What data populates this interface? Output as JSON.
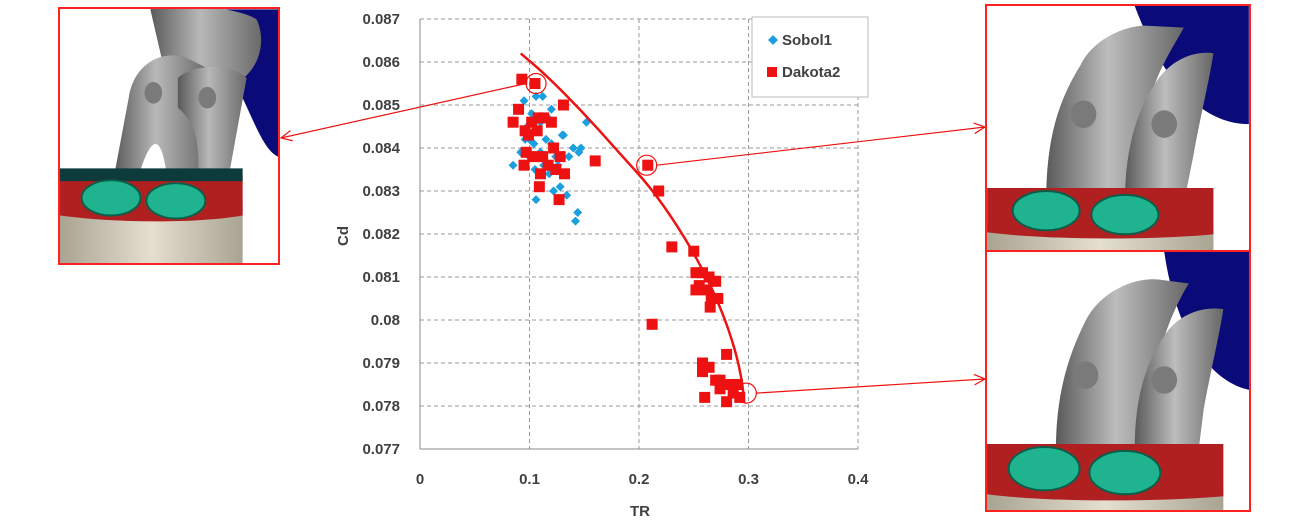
{
  "chart_data": {
    "type": "scatter",
    "xlabel": "TR",
    "ylabel": "Cd",
    "xlim": [
      0,
      0.4
    ],
    "ylim": [
      0.077,
      0.087
    ],
    "x_ticks": [
      "0",
      "0.1",
      "0.2",
      "0.3",
      "0.4"
    ],
    "y_ticks": [
      "0.077",
      "0.078",
      "0.079",
      "0.08",
      "0.081",
      "0.082",
      "0.083",
      "0.084",
      "0.085",
      "0.086",
      "0.087"
    ],
    "grid": "dashed",
    "legend_position": "top-right",
    "series": [
      {
        "name": "Sobol1",
        "marker": "diamond",
        "color": "#1a9fe0",
        "points": [
          [
            0.085,
            0.0836
          ],
          [
            0.092,
            0.0839
          ],
          [
            0.096,
            0.0842
          ],
          [
            0.098,
            0.0845
          ],
          [
            0.1,
            0.0838
          ],
          [
            0.102,
            0.0848
          ],
          [
            0.104,
            0.0841
          ],
          [
            0.105,
            0.0835
          ],
          [
            0.106,
            0.0852
          ],
          [
            0.108,
            0.0844
          ],
          [
            0.11,
            0.0839
          ],
          [
            0.112,
            0.0852
          ],
          [
            0.113,
            0.0836
          ],
          [
            0.115,
            0.0842
          ],
          [
            0.117,
            0.0847
          ],
          [
            0.118,
            0.0834
          ],
          [
            0.12,
            0.0841
          ],
          [
            0.122,
            0.083
          ],
          [
            0.124,
            0.0838
          ],
          [
            0.126,
            0.0836
          ],
          [
            0.128,
            0.0831
          ],
          [
            0.13,
            0.0843
          ],
          [
            0.132,
            0.0834
          ],
          [
            0.134,
            0.0829
          ],
          [
            0.136,
            0.0838
          ],
          [
            0.14,
            0.084
          ],
          [
            0.142,
            0.0823
          ],
          [
            0.144,
            0.0825
          ],
          [
            0.145,
            0.0839
          ],
          [
            0.147,
            0.084
          ],
          [
            0.152,
            0.0846
          ],
          [
            0.106,
            0.0828
          ],
          [
            0.11,
            0.0846
          ],
          [
            0.1,
            0.0842
          ],
          [
            0.095,
            0.0851
          ],
          [
            0.12,
            0.0849
          ],
          [
            0.131,
            0.0843
          ],
          [
            0.104,
            0.0844
          ]
        ]
      },
      {
        "name": "Dakota2",
        "marker": "square",
        "color": "#ee1111",
        "points": [
          [
            0.093,
            0.0856
          ],
          [
            0.105,
            0.0855
          ],
          [
            0.09,
            0.0849
          ],
          [
            0.096,
            0.0844
          ],
          [
            0.085,
            0.0846
          ],
          [
            0.102,
            0.0846
          ],
          [
            0.108,
            0.0847
          ],
          [
            0.113,
            0.0847
          ],
          [
            0.099,
            0.0843
          ],
          [
            0.107,
            0.0844
          ],
          [
            0.12,
            0.0846
          ],
          [
            0.131,
            0.085
          ],
          [
            0.095,
            0.0836
          ],
          [
            0.103,
            0.0838
          ],
          [
            0.11,
            0.0834
          ],
          [
            0.097,
            0.0839
          ],
          [
            0.112,
            0.0838
          ],
          [
            0.117,
            0.0836
          ],
          [
            0.122,
            0.084
          ],
          [
            0.128,
            0.0838
          ],
          [
            0.109,
            0.0831
          ],
          [
            0.124,
            0.0835
          ],
          [
            0.132,
            0.0834
          ],
          [
            0.127,
            0.0828
          ],
          [
            0.16,
            0.0837
          ],
          [
            0.208,
            0.0836
          ],
          [
            0.218,
            0.083
          ],
          [
            0.23,
            0.0817
          ],
          [
            0.25,
            0.0816
          ],
          [
            0.252,
            0.0811
          ],
          [
            0.258,
            0.0811
          ],
          [
            0.264,
            0.081
          ],
          [
            0.255,
            0.0808
          ],
          [
            0.262,
            0.0807
          ],
          [
            0.27,
            0.0809
          ],
          [
            0.252,
            0.0807
          ],
          [
            0.266,
            0.0805
          ],
          [
            0.272,
            0.0805
          ],
          [
            0.265,
            0.0803
          ],
          [
            0.212,
            0.0799
          ],
          [
            0.28,
            0.0792
          ],
          [
            0.258,
            0.079
          ],
          [
            0.264,
            0.0789
          ],
          [
            0.258,
            0.0788
          ],
          [
            0.27,
            0.0786
          ],
          [
            0.282,
            0.0785
          ],
          [
            0.29,
            0.0785
          ],
          [
            0.286,
            0.0783
          ],
          [
            0.274,
            0.0784
          ],
          [
            0.292,
            0.0782
          ],
          [
            0.26,
            0.0782
          ],
          [
            0.28,
            0.0781
          ],
          [
            0.274,
            0.0786
          ]
        ]
      }
    ],
    "pareto_curve": [
      [
        0.092,
        0.0862
      ],
      [
        0.115,
        0.0857
      ],
      [
        0.15,
        0.0848
      ],
      [
        0.185,
        0.0838
      ],
      [
        0.21,
        0.0831
      ],
      [
        0.235,
        0.0822
      ],
      [
        0.258,
        0.0812
      ],
      [
        0.276,
        0.0802
      ],
      [
        0.288,
        0.0793
      ],
      [
        0.294,
        0.0786
      ],
      [
        0.296,
        0.0781
      ]
    ],
    "highlighted_points": [
      [
        0.106,
        0.0855
      ],
      [
        0.207,
        0.0836
      ],
      [
        0.298,
        0.0783
      ]
    ],
    "annotation_color": "#ee1111"
  },
  "images": [
    {
      "id": "design-left"
    },
    {
      "id": "design-right-top"
    },
    {
      "id": "design-right-bottom"
    }
  ]
}
